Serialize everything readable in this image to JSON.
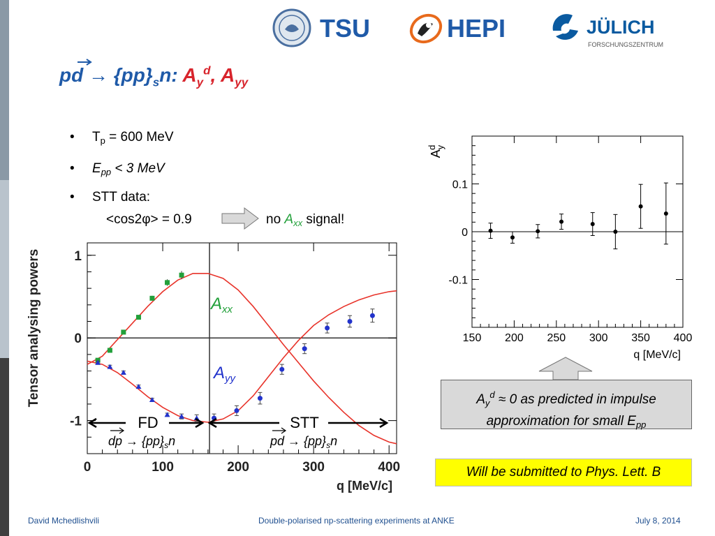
{
  "header": {
    "logos": [
      {
        "name": "TSU",
        "icon": "tsu-seal-icon"
      },
      {
        "name": "HEPI",
        "icon": "hepi-icon"
      },
      {
        "name": "JÜLICH",
        "subtitle": "FORSCHUNGSZENTRUM",
        "icon": "juelich-icon"
      }
    ]
  },
  "title": {
    "reaction_part1": "pd → {pp}",
    "reaction_sub": "s",
    "reaction_part2": "n: ",
    "obs1_main": "A",
    "obs1_sub": "y",
    "obs1_sup": "d",
    "separator": ", ",
    "obs2_main": "A",
    "obs2_sub": "yy"
  },
  "bullets": {
    "b1_main": "T",
    "b1_sub": "p",
    "b1_rest": " = 600 MeV",
    "b2_main": "E",
    "b2_sub": "pp",
    "b2_rest": " < 3 MeV",
    "b3": "STT data:",
    "b4": "<cos2φ> = 0.9",
    "b5_pre": "no ",
    "b5_a": "A",
    "b5_sub": "xx",
    "b5_post": " signal!",
    "bullet_char": "•"
  },
  "chart_data": [
    {
      "type": "scatter",
      "title": "",
      "xlabel": "q [MeV/c]",
      "ylabel": "A_y^d",
      "xlim": [
        150,
        400
      ],
      "ylim": [
        -0.2,
        0.2
      ],
      "xticks": [
        150,
        200,
        250,
        300,
        350,
        400
      ],
      "yticks": [
        0.1,
        0,
        -0.1
      ],
      "ytick_labels": [
        "0.1",
        "0",
        "-0.1"
      ],
      "grid": false,
      "series": [
        {
          "x": [
            172,
            198,
            228,
            256,
            293,
            320,
            350,
            380
          ],
          "y": [
            0.002,
            -0.012,
            0.001,
            0.021,
            0.016,
            0.0,
            0.053,
            0.038
          ],
          "err": [
            0.016,
            0.012,
            0.014,
            0.016,
            0.024,
            0.036,
            0.046,
            0.064
          ]
        }
      ]
    },
    {
      "type": "scatter",
      "title": "",
      "xlabel": "q [MeV/c]",
      "ylabel": "Tensor analysing powers",
      "xlim": [
        0,
        410
      ],
      "ylim": [
        -1.4,
        1.15
      ],
      "xticks": [
        0,
        100,
        200,
        300,
        400
      ],
      "yticks": [
        1,
        0,
        -1
      ],
      "grid": false,
      "divider_x": 162,
      "series": [
        {
          "name": "Axx",
          "color": "#22a03a",
          "x": [
            14,
            30,
            48,
            68,
            86,
            106,
            125
          ],
          "y": [
            -0.27,
            -0.15,
            0.07,
            0.25,
            0.48,
            0.67,
            0.76
          ],
          "err": [
            0.02,
            0.02,
            0.02,
            0.02,
            0.03,
            0.04,
            0.05
          ]
        },
        {
          "name": "Ayy",
          "color": "#2233cc",
          "x": [
            14,
            30,
            48,
            68,
            86,
            106,
            125,
            145,
            168,
            198,
            229,
            258,
            288,
            318,
            348,
            378
          ],
          "y": [
            -0.3,
            -0.35,
            -0.42,
            -0.59,
            -0.75,
            -0.93,
            -0.95,
            -0.97,
            -0.97,
            -0.88,
            -0.73,
            -0.38,
            -0.13,
            0.12,
            0.2,
            0.27
          ],
          "err": [
            0.02,
            0.02,
            0.02,
            0.02,
            0.02,
            0.02,
            0.03,
            0.04,
            0.05,
            0.06,
            0.07,
            0.06,
            0.06,
            0.06,
            0.07,
            0.08
          ]
        },
        {
          "name": "Axx-theory",
          "x": [
            0,
            20,
            40,
            60,
            80,
            100,
            120,
            140,
            160,
            180,
            200,
            220,
            240,
            260,
            280,
            300,
            320,
            340,
            360,
            380,
            400,
            410
          ],
          "y": [
            -0.32,
            -0.22,
            -0.02,
            0.18,
            0.38,
            0.56,
            0.7,
            0.78,
            0.78,
            0.72,
            0.58,
            0.38,
            0.15,
            -0.08,
            -0.3,
            -0.52,
            -0.72,
            -0.9,
            -1.06,
            -1.18,
            -1.26,
            -1.28
          ]
        },
        {
          "name": "Ayy-theory",
          "x": [
            0,
            20,
            40,
            60,
            80,
            100,
            120,
            140,
            160,
            180,
            200,
            220,
            240,
            260,
            280,
            300,
            320,
            340,
            360,
            380,
            400,
            410
          ],
          "y": [
            -0.28,
            -0.32,
            -0.42,
            -0.56,
            -0.71,
            -0.84,
            -0.94,
            -1.0,
            -1.02,
            -0.98,
            -0.88,
            -0.7,
            -0.47,
            -0.24,
            -0.03,
            0.15,
            0.28,
            0.38,
            0.46,
            0.52,
            0.56,
            0.57
          ]
        }
      ],
      "annotations": {
        "axx_label": "A",
        "axx_sub": "xx",
        "ayy_label": "A",
        "ayy_sub": "yy",
        "fd": "FD",
        "stt": "STT",
        "fd_reaction": "dp → {pp}",
        "fd_reaction_sub": "s",
        "fd_reaction_end": "n",
        "stt_reaction": "pd → {pp}",
        "stt_reaction_sub": "s",
        "stt_reaction_end": "n"
      }
    }
  ],
  "callout": {
    "l1_a": "A",
    "l1_sub": "y",
    "l1_sup": "d",
    "l1_rest": " ≈ 0 as predicted in impulse",
    "l2_main": "approximation for small E",
    "l2_sub": "pp"
  },
  "submitted": "Will be submitted to Phys. Lett. B",
  "footer": {
    "author": "David Mchedlishvili",
    "talk": "Double-polarised np-scattering experiments at ANKE",
    "date": "July 8, 2014"
  },
  "colors": {
    "title_blue": "#1f5aa8",
    "title_red": "#d8242c",
    "theory_red": "#e8332a",
    "axx_green": "#22a03a",
    "ayy_blue": "#2233cc",
    "highlight_yellow": "#ffff00"
  }
}
